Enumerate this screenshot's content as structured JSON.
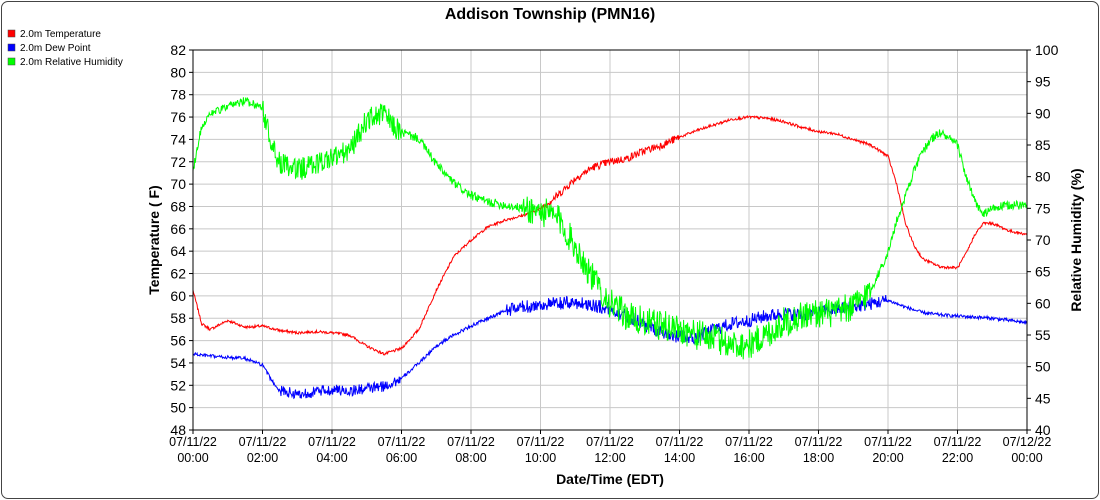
{
  "chart_data": {
    "type": "line",
    "title": "Addison Township (PMN16)",
    "xlabel": "Date/Time (EDT)",
    "ylabel_left": "Temperature ( F)",
    "ylabel_right": "Relative Humidity (%)",
    "ylim_left": [
      48,
      82
    ],
    "ylim_right": [
      40,
      100
    ],
    "grid": true,
    "legend_position": "top-left",
    "left_ticks": [
      "48",
      "50",
      "52",
      "54",
      "56",
      "58",
      "60",
      "62",
      "64",
      "66",
      "68",
      "70",
      "72",
      "74",
      "76",
      "78",
      "80",
      "82"
    ],
    "right_ticks": [
      "40",
      "45",
      "50",
      "55",
      "60",
      "65",
      "70",
      "75",
      "80",
      "85",
      "90",
      "95",
      "100"
    ],
    "x_ticks": [
      {
        "date": "07/11/22",
        "time": "00:00"
      },
      {
        "date": "07/11/22",
        "time": "02:00"
      },
      {
        "date": "07/11/22",
        "time": "04:00"
      },
      {
        "date": "07/11/22",
        "time": "06:00"
      },
      {
        "date": "07/11/22",
        "time": "08:00"
      },
      {
        "date": "07/11/22",
        "time": "10:00"
      },
      {
        "date": "07/11/22",
        "time": "12:00"
      },
      {
        "date": "07/11/22",
        "time": "14:00"
      },
      {
        "date": "07/11/22",
        "time": "16:00"
      },
      {
        "date": "07/11/22",
        "time": "18:00"
      },
      {
        "date": "07/11/22",
        "time": "20:00"
      },
      {
        "date": "07/11/22",
        "time": "22:00"
      },
      {
        "date": "07/12/22",
        "time": "00:00"
      }
    ],
    "series": [
      {
        "name": "2.0m Temperature",
        "color": "#ff0000",
        "axis": "left",
        "hours": [
          0,
          0.25,
          0.5,
          1,
          1.5,
          2,
          2.5,
          3,
          3.5,
          4,
          4.5,
          5,
          5.5,
          6,
          6.5,
          7,
          7.5,
          8,
          8.5,
          9,
          9.5,
          10,
          10.5,
          11,
          11.5,
          12,
          12.5,
          13,
          13.5,
          14,
          14.5,
          15,
          15.5,
          16,
          16.5,
          17,
          17.5,
          18,
          18.5,
          19,
          19.5,
          20,
          20.25,
          20.5,
          20.75,
          21,
          21.5,
          22,
          22.25,
          22.5,
          22.75,
          23,
          23.5,
          24
        ],
        "values": [
          60.5,
          57.5,
          57.0,
          57.8,
          57.2,
          57.3,
          56.9,
          56.7,
          56.8,
          56.7,
          56.5,
          55.5,
          54.8,
          55.3,
          57.0,
          60.5,
          63.5,
          65.0,
          66.2,
          66.8,
          67.2,
          67.8,
          69.0,
          70.5,
          71.5,
          72.0,
          72.3,
          73.0,
          73.5,
          74.2,
          74.8,
          75.3,
          75.8,
          76.0,
          75.9,
          75.6,
          75.1,
          74.7,
          74.5,
          74.0,
          73.5,
          72.5,
          70.0,
          66.5,
          64.5,
          63.3,
          62.6,
          62.5,
          63.8,
          65.5,
          66.5,
          66.5,
          65.8,
          65.5
        ]
      },
      {
        "name": "2.0m Dew Point",
        "color": "#0000ff",
        "axis": "left",
        "hours": [
          0,
          0.5,
          1,
          1.5,
          2,
          2.25,
          2.5,
          3,
          3.5,
          4,
          4.5,
          5,
          5.5,
          6,
          6.5,
          7,
          7.5,
          8,
          8.5,
          9,
          9.5,
          10,
          10.5,
          11,
          11.5,
          12,
          12.5,
          13,
          13.5,
          14,
          14.5,
          15,
          15.5,
          16,
          16.5,
          17,
          17.5,
          18,
          18.5,
          19,
          19.5,
          20,
          20.5,
          21,
          21.5,
          22,
          22.5,
          23,
          23.5,
          24
        ],
        "values": [
          54.8,
          54.6,
          54.5,
          54.4,
          53.8,
          52.5,
          51.5,
          51.2,
          51.4,
          51.6,
          51.5,
          51.7,
          51.9,
          52.6,
          54.0,
          55.5,
          56.5,
          57.3,
          58.0,
          58.7,
          59.0,
          59.2,
          59.3,
          59.4,
          59.2,
          58.8,
          58.2,
          57.4,
          56.8,
          56.3,
          56.3,
          57.0,
          57.5,
          57.8,
          58.2,
          58.4,
          58.3,
          58.5,
          58.8,
          59.0,
          59.3,
          59.6,
          59.0,
          58.5,
          58.3,
          58.2,
          58.1,
          58.0,
          57.8,
          57.6
        ]
      },
      {
        "name": "2.0m Relative Humidity",
        "color": "#00ff00",
        "axis": "right",
        "hours": [
          0,
          0.25,
          0.5,
          1,
          1.5,
          2,
          2.25,
          2.5,
          3,
          3.5,
          4,
          4.5,
          5,
          5.5,
          5.75,
          6,
          6.5,
          7,
          7.5,
          8,
          8.5,
          9,
          9.5,
          10,
          10.5,
          11,
          11.5,
          12,
          12.5,
          13,
          13.5,
          14,
          14.5,
          15,
          15.5,
          16,
          16.5,
          17,
          17.5,
          18,
          18.5,
          19,
          19.5,
          20,
          20.25,
          20.5,
          20.75,
          21,
          21.25,
          21.5,
          21.75,
          22,
          22.25,
          22.5,
          22.75,
          23,
          23.5,
          24
        ],
        "values": [
          81,
          88,
          90,
          91,
          92,
          91,
          85,
          82,
          81,
          82,
          83,
          84,
          89,
          90,
          88,
          87,
          86,
          82,
          79,
          77,
          76,
          75.5,
          75,
          74.5,
          73.5,
          69,
          64,
          60,
          58,
          57,
          56.5,
          56,
          55,
          54.5,
          53.5,
          53.5,
          55,
          57,
          58,
          58.5,
          58.5,
          59.5,
          62,
          68,
          73,
          77,
          81,
          84,
          86,
          87,
          86,
          85,
          80,
          76,
          74,
          75,
          75.5,
          75.5
        ]
      }
    ]
  }
}
